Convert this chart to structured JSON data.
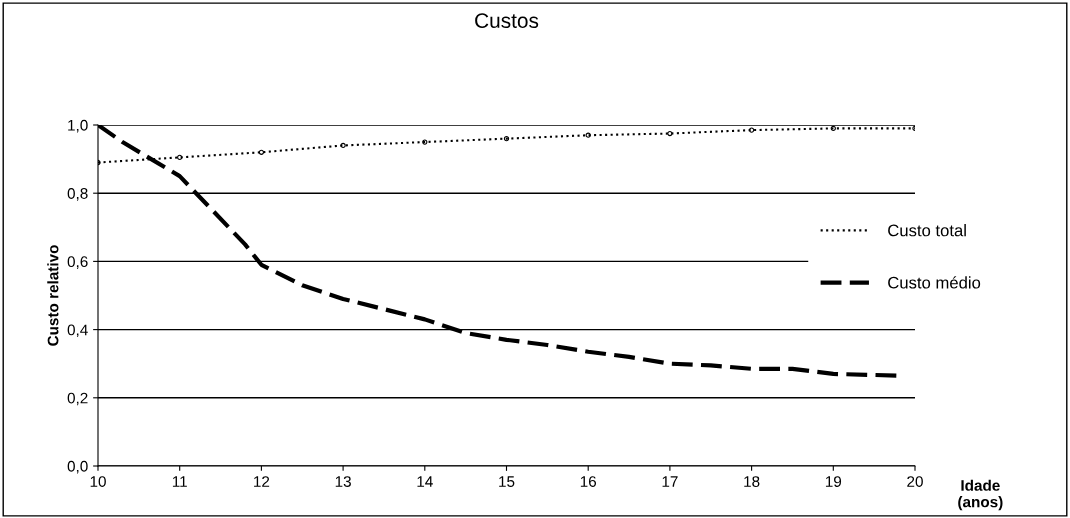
{
  "chart_data": {
    "type": "line",
    "title": "Custos",
    "xlabel": "Idade\n(anos)",
    "ylabel": "Custo relativo",
    "xlim": [
      10,
      20
    ],
    "xticks": [
      10,
      11,
      12,
      13,
      14,
      15,
      16,
      17,
      18,
      19,
      20
    ],
    "ylim": [
      0,
      1
    ],
    "yticks": [
      {
        "value": 0,
        "label": "0,0"
      },
      {
        "value": 0.2,
        "label": "0,2"
      },
      {
        "value": 0.4,
        "label": "0,4"
      },
      {
        "value": 0.6,
        "label": "0,6"
      },
      {
        "value": 0.8,
        "label": "0,8"
      },
      {
        "value": 1,
        "label": "1,0"
      }
    ],
    "grid": "y",
    "legend": "right",
    "series": [
      {
        "name": "Custo total",
        "color": "#000000",
        "marker": "circle",
        "line_style": "dotted",
        "x": [
          10,
          11,
          12,
          13,
          14,
          15,
          16,
          17,
          18,
          19,
          20
        ],
        "values": [
          0.89,
          0.905,
          0.92,
          0.94,
          0.95,
          0.96,
          0.97,
          0.975,
          0.985,
          0.99,
          0.99
        ]
      },
      {
        "name": "Custo médio",
        "color": "#000000",
        "marker": "none",
        "line_style": "dashed",
        "x": [
          10,
          10.3,
          11,
          11.2,
          11.8,
          12,
          12.5,
          13,
          13.5,
          14,
          14.5,
          15,
          15.5,
          16,
          16.5,
          17,
          17.5,
          18,
          18.5,
          19,
          19.8
        ],
        "values": [
          1.0,
          0.95,
          0.85,
          0.8,
          0.65,
          0.59,
          0.53,
          0.49,
          0.46,
          0.43,
          0.39,
          0.37,
          0.355,
          0.335,
          0.32,
          0.3,
          0.295,
          0.285,
          0.285,
          0.27,
          0.265
        ]
      }
    ]
  }
}
